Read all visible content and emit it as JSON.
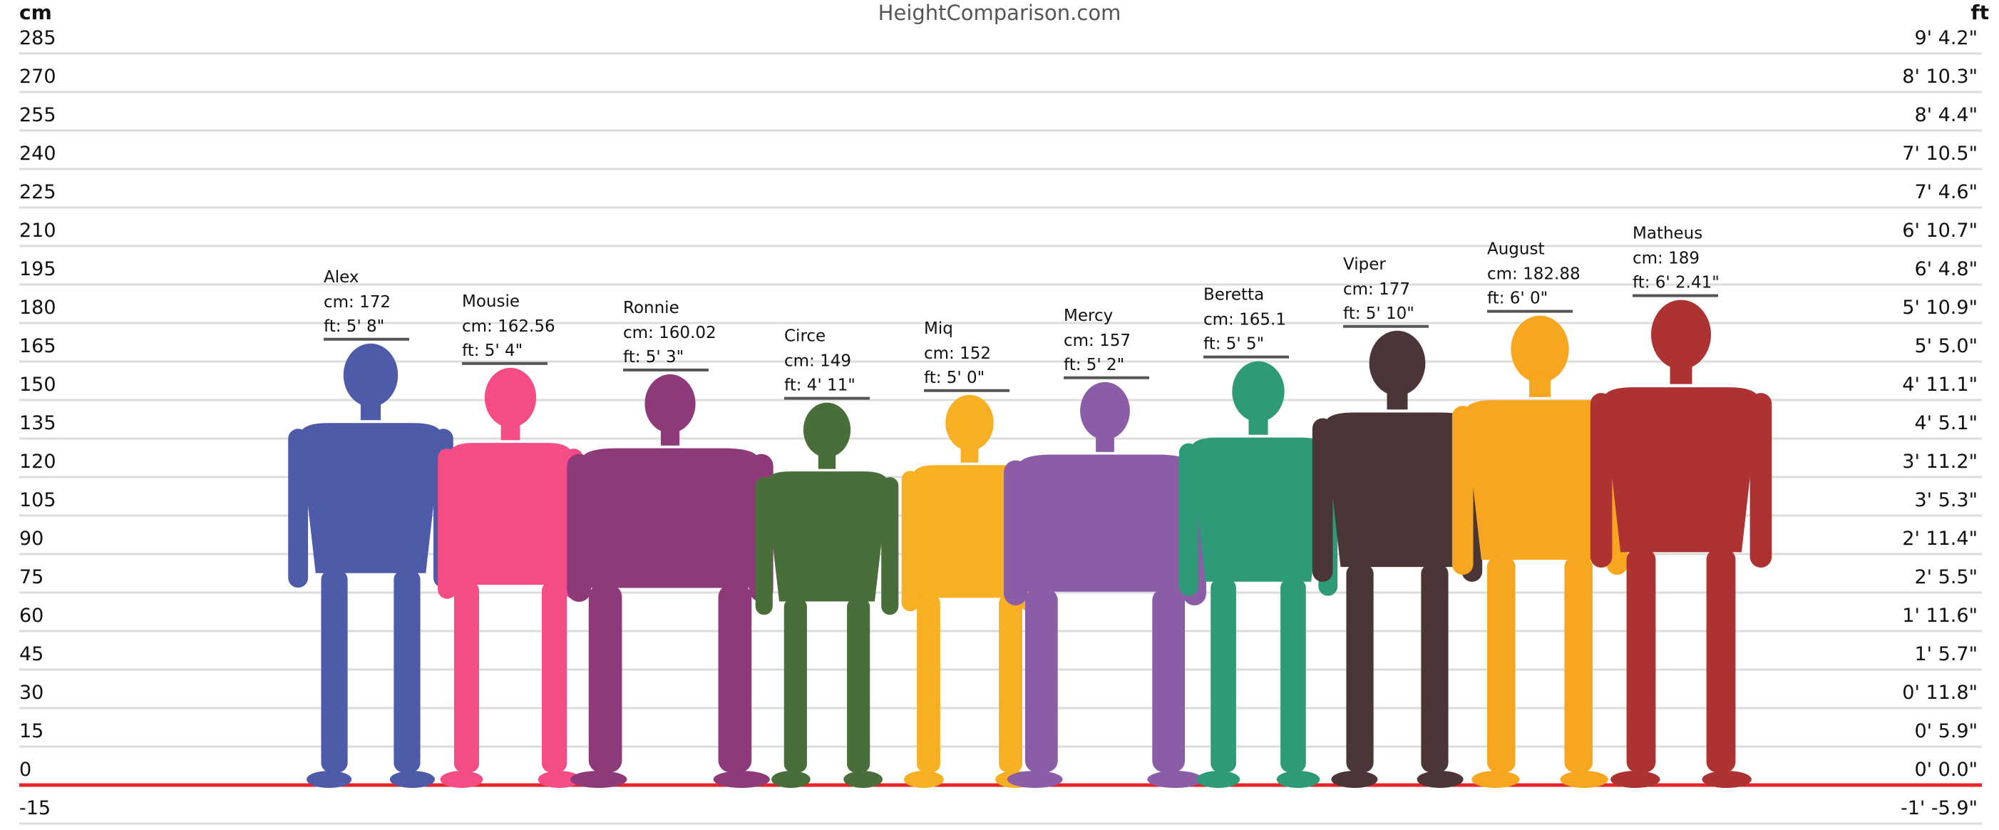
{
  "header": {
    "site": "HeightComparison.com",
    "left_unit": "cm",
    "right_unit": "ft"
  },
  "chart_data": {
    "type": "bar",
    "title": "HeightComparison.com",
    "y_unit_left": "cm",
    "y_unit_right": "ft",
    "ylim": [
      -15,
      285
    ],
    "left_ticks": [
      "285",
      "270",
      "255",
      "240",
      "225",
      "210",
      "195",
      "180",
      "165",
      "150",
      "135",
      "120",
      "105",
      "90",
      "75",
      "60",
      "45",
      "30",
      "15",
      "0",
      "-15"
    ],
    "right_ticks": [
      "9' 4.2\"",
      "8' 10.3\"",
      "8' 4.4\"",
      "7' 10.5\"",
      "7' 4.6\"",
      "6' 10.7\"",
      "6' 4.8\"",
      "5' 10.9\"",
      "5' 5.0\"",
      "4' 11.1\"",
      "4' 5.1\"",
      "3' 11.2\"",
      "3' 5.3\"",
      "2' 11.4\"",
      "2' 5.5\"",
      "1' 11.6\"",
      "1' 5.7\"",
      "0' 11.8\"",
      "0' 5.9\"",
      "0' 0.0\"",
      "-1' -5.9\""
    ],
    "grid": true,
    "baseline_color": "#e8232a",
    "people": [
      {
        "name": "Alex",
        "cm_label": "cm: 172",
        "ft_label": "ft: 5' 8\"",
        "height_cm": 172,
        "color": "#4d5ba8",
        "build": "male"
      },
      {
        "name": "Mousie",
        "cm_label": "cm: 162.56",
        "ft_label": "ft: 5' 4\"",
        "height_cm": 162.56,
        "color": "#f44d86",
        "build": "female"
      },
      {
        "name": "Ronnie",
        "cm_label": "cm: 160.02",
        "ft_label": "ft: 5' 3\"",
        "height_cm": 160.02,
        "color": "#8e3a7a",
        "build": "curvy"
      },
      {
        "name": "Circe",
        "cm_label": "cm: 149",
        "ft_label": "ft: 4' 11\"",
        "height_cm": 149,
        "color": "#4a6e3a",
        "build": "male"
      },
      {
        "name": "Miq",
        "cm_label": "cm: 152",
        "ft_label": "ft: 5' 0\"",
        "height_cm": 152,
        "color": "#f7b023",
        "build": "female"
      },
      {
        "name": "Mercy",
        "cm_label": "cm: 157",
        "ft_label": "ft: 5' 2\"",
        "height_cm": 157,
        "color": "#8a5da6",
        "build": "curvy"
      },
      {
        "name": "Beretta",
        "cm_label": "cm: 165.1",
        "ft_label": "ft: 5' 5\"",
        "height_cm": 165.1,
        "color": "#2f9a78",
        "build": "male"
      },
      {
        "name": "Viper",
        "cm_label": "cm: 177",
        "ft_label": "ft: 5' 10\"",
        "height_cm": 177,
        "color": "#4a3636",
        "build": "male"
      },
      {
        "name": "August",
        "cm_label": "cm: 182.88",
        "ft_label": "ft: 6' 0\"",
        "height_cm": 182.88,
        "color": "#f8a520",
        "build": "male"
      },
      {
        "name": "Matheus",
        "cm_label": "cm: 189",
        "ft_label": "ft: 6' 2.41\"",
        "height_cm": 189,
        "color": "#ad3232",
        "build": "male"
      }
    ]
  }
}
